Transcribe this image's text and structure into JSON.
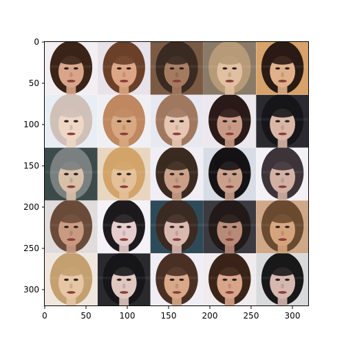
{
  "figure": {
    "type": "image-grid",
    "grid": {
      "rows": 5,
      "cols": 5,
      "tile_size_data_units": 64
    },
    "x_ticks": [
      "0",
      "50",
      "100",
      "150",
      "200",
      "250",
      "300"
    ],
    "y_ticks": [
      "0",
      "50",
      "100",
      "150",
      "200",
      "250",
      "300"
    ],
    "xlim": [
      0,
      320
    ],
    "ylim": [
      320,
      0
    ],
    "content": "generated face samples",
    "tiles": [
      {
        "hair": "#3a2418",
        "bg": "#f2eef2",
        "skin": "#d8a58a"
      },
      {
        "hair": "#6a4028",
        "bg": "#e8e2ea",
        "skin": "#dca584"
      },
      {
        "hair": "#3a2a22",
        "bg": "#7b5a44",
        "skin": "#a57b60"
      },
      {
        "hair": "#b79a78",
        "bg": "#8a7a68",
        "skin": "#e0c0a0"
      },
      {
        "hair": "#2a1a14",
        "bg": "#d7a36a",
        "skin": "#e0b08a"
      },
      {
        "hair": "#cfc0b8",
        "bg": "#e9eef5",
        "skin": "#efd7c6"
      },
      {
        "hair": "#c08860",
        "bg": "#f0f0f4",
        "skin": "#d8a880"
      },
      {
        "hair": "#a07860",
        "bg": "#e8e8f0",
        "skin": "#e6c6b2"
      },
      {
        "hair": "#2a1a18",
        "bg": "#ece8ee",
        "skin": "#c89a86"
      },
      {
        "hair": "#16161a",
        "bg": "#2a2a30",
        "skin": "#d9b6a6"
      },
      {
        "hair": "#7a8080",
        "bg": "#3c4a4a",
        "skin": "#d8c0a8"
      },
      {
        "hair": "#d2a46a",
        "bg": "#e8d6c0",
        "skin": "#e4c09a"
      },
      {
        "hair": "#3a2a20",
        "bg": "#f0eef4",
        "skin": "#caa088"
      },
      {
        "hair": "#141214",
        "bg": "#d8dce4",
        "skin": "#c9a08c"
      },
      {
        "hair": "#3c3438",
        "bg": "#f3f1f6",
        "skin": "#d2b0a4"
      },
      {
        "hair": "#6a4a38",
        "bg": "#e0dcdc",
        "skin": "#c89a80"
      },
      {
        "hair": "#1c1a1c",
        "bg": "#f4f2f6",
        "skin": "#e6cccc"
      },
      {
        "hair": "#3a2a22",
        "bg": "#2e4a58",
        "skin": "#d9b8b0"
      },
      {
        "hair": "#221a18",
        "bg": "#3a3a40",
        "skin": "#b88a78"
      },
      {
        "hair": "#6a4a30",
        "bg": "#cfa888",
        "skin": "#d6a47c"
      },
      {
        "hair": "#c4a070",
        "bg": "#efe7de",
        "skin": "#e6c6a4"
      },
      {
        "hair": "#16161a",
        "bg": "#2a2a2e",
        "skin": "#e0c8c0"
      },
      {
        "hair": "#4a3024",
        "bg": "#f0eef4",
        "skin": "#d8a888"
      },
      {
        "hair": "#3a2418",
        "bg": "#f0ecee",
        "skin": "#d8a48a"
      },
      {
        "hair": "#181818",
        "bg": "#d8dadc",
        "skin": "#d6b8b0"
      }
    ]
  }
}
